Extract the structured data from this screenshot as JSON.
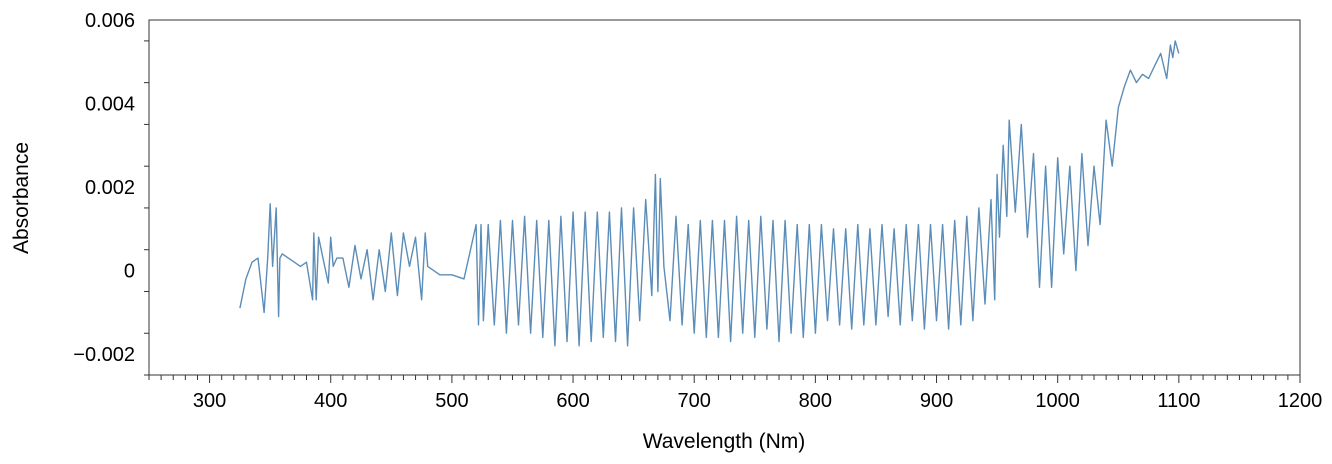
{
  "chart_data": {
    "type": "line",
    "title": "",
    "xlabel": "Wavelength (Nm)",
    "ylabel": "Absorbance",
    "xlim": [
      250,
      1200
    ],
    "ylim": [
      -0.0025,
      0.006
    ],
    "x_ticks": [
      300,
      400,
      500,
      600,
      700,
      800,
      900,
      1000,
      1100,
      1200
    ],
    "x_tick_labels": [
      "300",
      "400",
      "500",
      "600",
      "700",
      "800",
      "900",
      "1000",
      "1100",
      "1200"
    ],
    "y_ticks": [
      -0.002,
      0,
      0.002,
      0.004,
      0.006
    ],
    "y_tick_labels": [
      "−0.002",
      "0",
      "0.002",
      "0.004",
      "0.006"
    ],
    "grid": false,
    "legend": "none",
    "series_color": "#5b8db8",
    "series": [
      {
        "x": [
          325,
          330,
          335,
          340,
          345,
          348,
          350,
          352,
          355,
          357,
          358,
          360,
          365,
          370,
          375,
          380,
          385,
          386,
          388,
          390,
          395,
          398,
          400,
          402,
          405,
          410,
          415,
          420,
          425,
          430,
          435,
          440,
          445,
          450,
          455,
          460,
          465,
          470,
          475,
          478,
          480,
          485,
          490,
          500,
          510,
          520,
          522,
          524,
          526,
          530,
          535,
          540,
          545,
          550,
          555,
          560,
          565,
          570,
          575,
          580,
          585,
          590,
          595,
          600,
          605,
          610,
          615,
          620,
          625,
          630,
          635,
          640,
          645,
          650,
          655,
          660,
          665,
          668,
          670,
          672,
          675,
          680,
          685,
          690,
          695,
          700,
          705,
          710,
          715,
          720,
          725,
          730,
          735,
          740,
          745,
          750,
          755,
          760,
          765,
          770,
          775,
          780,
          785,
          790,
          795,
          800,
          805,
          810,
          815,
          820,
          825,
          830,
          835,
          840,
          845,
          850,
          855,
          860,
          865,
          870,
          875,
          880,
          885,
          890,
          895,
          900,
          905,
          910,
          915,
          920,
          925,
          930,
          935,
          940,
          945,
          948,
          950,
          952,
          955,
          958,
          960,
          965,
          970,
          975,
          980,
          985,
          990,
          995,
          1000,
          1005,
          1010,
          1015,
          1020,
          1025,
          1030,
          1035,
          1040,
          1045,
          1050,
          1055,
          1060,
          1065,
          1070,
          1075,
          1080,
          1085,
          1090,
          1093,
          1095,
          1097,
          1100
        ],
        "y": [
          -0.0009,
          -0.0002,
          0.0002,
          0.0003,
          -0.001,
          0.0003,
          0.0016,
          0.0001,
          0.0015,
          -0.0011,
          0.0003,
          0.0004,
          0.0003,
          0.0002,
          0.0001,
          0.0002,
          -0.0007,
          0.0009,
          -0.0007,
          0.0008,
          0.0001,
          -0.0003,
          0.0008,
          0.0001,
          0.0003,
          0.0003,
          -0.0004,
          0.0006,
          -0.0002,
          0.0005,
          -0.0007,
          0.0005,
          -0.0005,
          0.0009,
          -0.0006,
          0.0009,
          0.0001,
          0.0008,
          -0.0007,
          0.0009,
          0.0001,
          0.0,
          -0.0001,
          -0.0001,
          -0.0002,
          0.0011,
          -0.0013,
          0.0011,
          -0.0012,
          0.0011,
          -0.0013,
          0.0012,
          -0.0015,
          0.0012,
          -0.0013,
          0.0013,
          -0.0015,
          0.0012,
          -0.0016,
          0.0012,
          -0.0018,
          0.0013,
          -0.0017,
          0.0014,
          -0.0018,
          0.0014,
          -0.0017,
          0.0014,
          -0.0016,
          0.0014,
          -0.0017,
          0.0015,
          -0.0018,
          0.0015,
          -0.0012,
          0.0017,
          -0.0006,
          0.0023,
          -0.0005,
          0.0022,
          0.0001,
          -0.0012,
          0.0013,
          -0.0013,
          0.0011,
          -0.0015,
          0.0012,
          -0.0016,
          0.0012,
          -0.0016,
          0.0012,
          -0.0017,
          0.0013,
          -0.0015,
          0.0012,
          -0.0016,
          0.0013,
          -0.0014,
          0.0012,
          -0.0017,
          0.0012,
          -0.0015,
          0.0011,
          -0.0016,
          0.0011,
          -0.0015,
          0.0011,
          -0.0012,
          0.001,
          -0.0013,
          0.001,
          -0.0014,
          0.0011,
          -0.0013,
          0.001,
          -0.0013,
          0.0011,
          -0.0011,
          0.001,
          -0.0013,
          0.0011,
          -0.0012,
          0.0011,
          -0.0014,
          0.0011,
          -0.0012,
          0.0011,
          -0.0014,
          0.0012,
          -0.0013,
          0.0013,
          -0.0012,
          0.0015,
          -0.0008,
          0.0017,
          -0.0007,
          0.0023,
          0.0008,
          0.003,
          0.0013,
          0.0036,
          0.0014,
          0.0035,
          0.0008,
          0.0028,
          -0.0004,
          0.0025,
          -0.0004,
          0.0027,
          0.0004,
          0.0025,
          0.0,
          0.0028,
          0.0006,
          0.0025,
          0.0011,
          0.0036,
          0.0025,
          0.0039,
          0.0044,
          0.0048,
          0.0045,
          0.0047,
          0.0046,
          0.0049,
          0.0052,
          0.0046,
          0.0054,
          0.0051,
          0.0055,
          0.0052
        ]
      }
    ]
  }
}
